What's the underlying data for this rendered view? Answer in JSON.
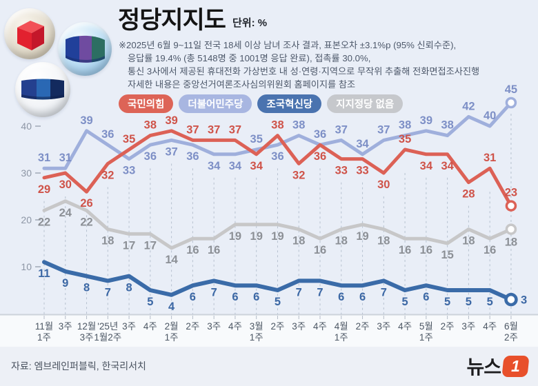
{
  "header": {
    "title": "정당지지도",
    "unit": "단위: %",
    "notes": [
      "※2025년 6월 9~11일 전국 18세 이상 남녀 조사 결과, 표본오차 ±3.1%p (95% 신뢰수준),",
      "응답률 19.4% (총 5148명 중 1001명 응답 완료), 접촉률 30.0%,",
      "통신 3사에서 제공된 휴대전화 가상번호 내 성·연령·지역으로 무작위 추출해 전화면접조사진행",
      "자세한 내용은 중앙선거여론조사심의위원회 홈페이지를 참조"
    ],
    "icons": [
      "ppp-red-cube-logo",
      "dpk-flag-logo",
      "rkp-banner-logo"
    ]
  },
  "legend": [
    {
      "label": "국민의힘",
      "color": "#dd6457"
    },
    {
      "label": "더불어민주당",
      "color": "#a8b6e1"
    },
    {
      "label": "조국혁신당",
      "color": "#4a73af"
    },
    {
      "label": "지지정당 없음",
      "color": "#c6c8cc"
    }
  ],
  "chart_data": {
    "type": "line",
    "title": "정당지지도",
    "unit": "%",
    "ylim": [
      0,
      48
    ],
    "y_ticks": [
      40,
      30,
      20,
      10
    ],
    "grid": "vertical-dashed",
    "legend_position": "top",
    "categories": [
      [
        "11월",
        "1주"
      ],
      [
        "3주"
      ],
      [
        "12월",
        "3주"
      ],
      [
        "'25년",
        "1월2주"
      ],
      [
        "3주"
      ],
      [
        "4주"
      ],
      [
        "2월",
        "1주"
      ],
      [
        "2주"
      ],
      [
        "3주"
      ],
      [
        "4주"
      ],
      [
        "3월",
        "1주"
      ],
      [
        "2주"
      ],
      [
        "3주"
      ],
      [
        "4주"
      ],
      [
        "4월",
        "1주"
      ],
      [
        "2주"
      ],
      [
        "3주"
      ],
      [
        "4주"
      ],
      [
        "5월",
        "1주"
      ],
      [
        "2주"
      ],
      [
        "3주"
      ],
      [
        "4주"
      ],
      [
        "6월",
        "2주"
      ]
    ],
    "series": [
      {
        "name": "지지정당 없음",
        "color": "#c7c7c8",
        "label_color": "#8c9096",
        "width": 5,
        "values": [
          22,
          24,
          22,
          18,
          17,
          17,
          14,
          16,
          16,
          19,
          19,
          19,
          18,
          16,
          18,
          19,
          18,
          16,
          16,
          15,
          18,
          16,
          18
        ],
        "label_sides": [
          "b",
          "b",
          "b",
          "b",
          "b",
          "b",
          "b",
          "b",
          "b",
          "b",
          "b",
          "b",
          "b",
          "b",
          "b",
          "b",
          "b",
          "b",
          "b",
          "b",
          "b",
          "b",
          "b"
        ]
      },
      {
        "name": "더불어민주당",
        "color": "#9fafdc",
        "label_color": "#7d8fc6",
        "width": 5,
        "values": [
          31,
          31,
          39,
          36,
          33,
          36,
          37,
          36,
          34,
          34,
          35,
          36,
          38,
          36,
          37,
          34,
          37,
          38,
          39,
          38,
          42,
          40,
          45
        ],
        "label_sides": [
          "a",
          "a",
          "a",
          "a",
          "b",
          "b",
          "b",
          "b",
          "b",
          "b",
          "a",
          "b",
          "a",
          "a",
          "a",
          "a",
          "a",
          "a",
          "a",
          "a",
          "a",
          "a",
          "a"
        ]
      },
      {
        "name": "국민의힘",
        "color": "#dc6156",
        "label_color": "#cf5349",
        "width": 5,
        "values": [
          29,
          30,
          26,
          32,
          35,
          38,
          39,
          37,
          37,
          37,
          34,
          38,
          32,
          36,
          33,
          33,
          30,
          35,
          34,
          34,
          28,
          31,
          23
        ],
        "label_sides": [
          "b",
          "b",
          "b",
          "b",
          "a",
          "a",
          "a",
          "a",
          "a",
          "a",
          "b",
          "a",
          "b",
          "b",
          "b",
          "b",
          "b",
          "a",
          "b",
          "b",
          "b",
          "a",
          "a"
        ]
      },
      {
        "name": "조국혁신당",
        "color": "#3a6ba8",
        "label_color": "#3c68a5",
        "width": 6,
        "values": [
          11,
          9,
          8,
          7,
          8,
          5,
          4,
          6,
          7,
          6,
          6,
          5,
          7,
          7,
          6,
          6,
          7,
          5,
          6,
          5,
          5,
          5,
          3
        ],
        "label_sides": [
          "b",
          "b",
          "b",
          "b",
          "b",
          "b",
          "b",
          "b",
          "b",
          "b",
          "b",
          "b",
          "b",
          "b",
          "b",
          "b",
          "b",
          "b",
          "b",
          "b",
          "b",
          "b",
          "r"
        ]
      }
    ],
    "end_marker": true
  },
  "footer": {
    "source": "자료: 엠브레인퍼블릭, 한국리서치",
    "logo_text": "뉴스",
    "logo_number": "1"
  }
}
